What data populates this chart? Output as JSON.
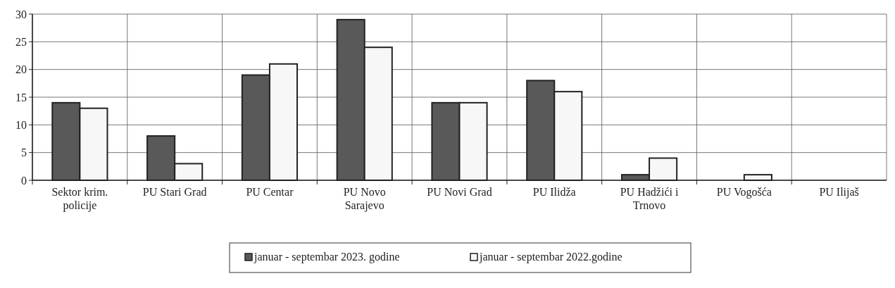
{
  "chart_data": {
    "type": "bar",
    "categories": [
      "Sektor krim. policije",
      "PU Stari Grad",
      "PU Centar",
      "PU Novo Sarajevo",
      "PU Novi Grad",
      "PU Ilidža",
      "PU Hadžići i Trnovo",
      "PU Vogošća",
      "PU Ilijaš"
    ],
    "series": [
      {
        "name": "januar - septembar 2023. godine",
        "color": "#595959",
        "values": [
          14,
          8,
          19,
          29,
          14,
          18,
          1,
          0,
          0
        ]
      },
      {
        "name": "januar - septembar 2022.godine",
        "color": "#f7f7f7",
        "values": [
          13,
          3,
          21,
          24,
          14,
          16,
          4,
          1,
          0
        ]
      }
    ],
    "ylim": [
      0,
      30
    ],
    "yticks": [
      0,
      5,
      10,
      15,
      20,
      25,
      30
    ],
    "grid": true,
    "legend": "bottom"
  }
}
